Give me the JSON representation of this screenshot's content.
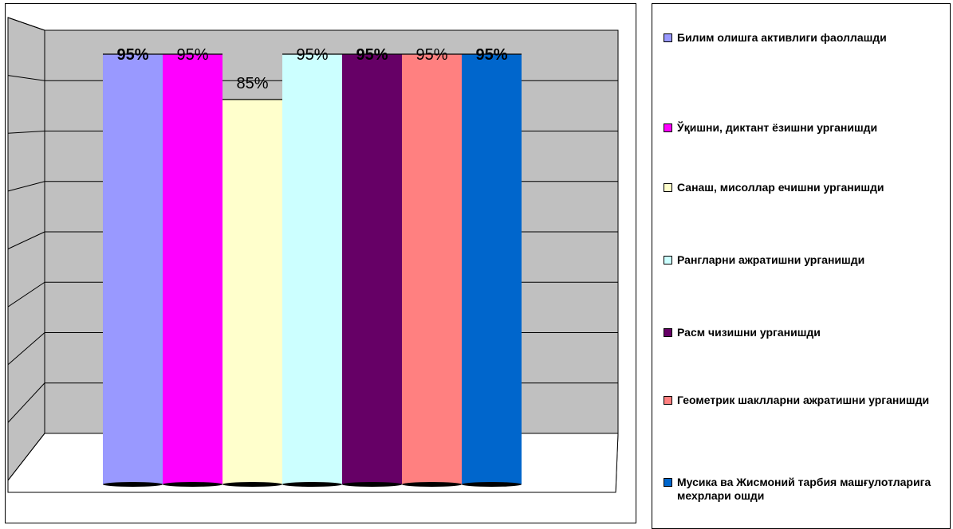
{
  "chart_data": {
    "type": "bar",
    "title": "",
    "xlabel": "",
    "ylabel": "",
    "ylim": [
      0,
      100
    ],
    "grid": true,
    "legend_position": "right",
    "series": [
      {
        "name": "Билим олишга активлиги фаоллашди",
        "value": 95,
        "label": "95%",
        "color": "#9999ff",
        "label_bold": true
      },
      {
        "name": "Ўқишни, диктант ёзишни урганишди",
        "value": 95,
        "label": "95%",
        "color": "#ff00ff",
        "label_bold": false
      },
      {
        "name": "Санаш, мисоллар ечишни урганишди",
        "value": 85,
        "label": "85%",
        "color": "#ffffcc",
        "label_bold": false
      },
      {
        "name": "Рангларни ажратишни урганишди",
        "value": 95,
        "label": "95%",
        "color": "#ccffff",
        "label_bold": false
      },
      {
        "name": "Расм чизишни урганишди",
        "value": 95,
        "label": "95%",
        "color": "#660066",
        "label_bold": true
      },
      {
        "name": "Геометрик шаклларни ажратишни урганишди",
        "value": 95,
        "label": "95%",
        "color": "#ff8080",
        "label_bold": false
      },
      {
        "name": "Мусика ва Жисмоний тарбия машғулотларига мехрлари ошди",
        "value": 95,
        "label": "95%",
        "color": "#0066cc",
        "label_bold": true
      }
    ]
  },
  "legend": {
    "items": [
      "Билим олишга активлиги фаоллашди",
      "Ўқишни, диктант ёзишни урганишди",
      "Санаш, мисоллар ечишни урганишди",
      "Рангларни ажратишни урганишди",
      "Расм чизишни урганишди",
      "Геометрик шаклларни ажратишни урганишди",
      "Мусика ва Жисмоний тарбия машғулотларига мехрлари ошди"
    ]
  },
  "colors": {
    "wall": "#c0c0c0",
    "side_wall": "#c0c0c0",
    "grid": "#000000"
  }
}
